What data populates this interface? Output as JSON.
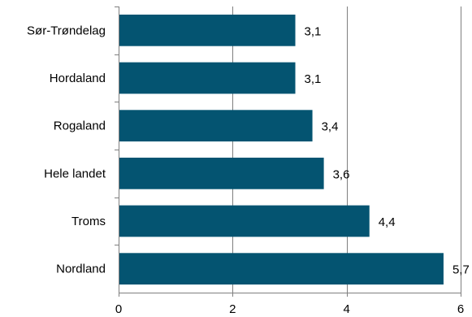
{
  "chart_data": {
    "type": "bar",
    "orientation": "horizontal",
    "categories": [
      "Sør-Trøndelag",
      "Hordaland",
      "Rogaland",
      "Hele landet",
      "Troms",
      "Nordland"
    ],
    "values": [
      3.1,
      3.1,
      3.4,
      3.6,
      4.4,
      5.7
    ],
    "value_labels": [
      "3,1",
      "3,1",
      "3,4",
      "3,6",
      "4,4",
      "5,7"
    ],
    "xlim": [
      0,
      6
    ],
    "x_ticks": [
      0,
      2,
      4,
      6
    ],
    "x_tick_labels": [
      "0",
      "2",
      "4",
      "6"
    ],
    "title": "",
    "xlabel": "",
    "ylabel": "",
    "grid": "vertical",
    "legend": "none",
    "bar_color": "#045471"
  }
}
